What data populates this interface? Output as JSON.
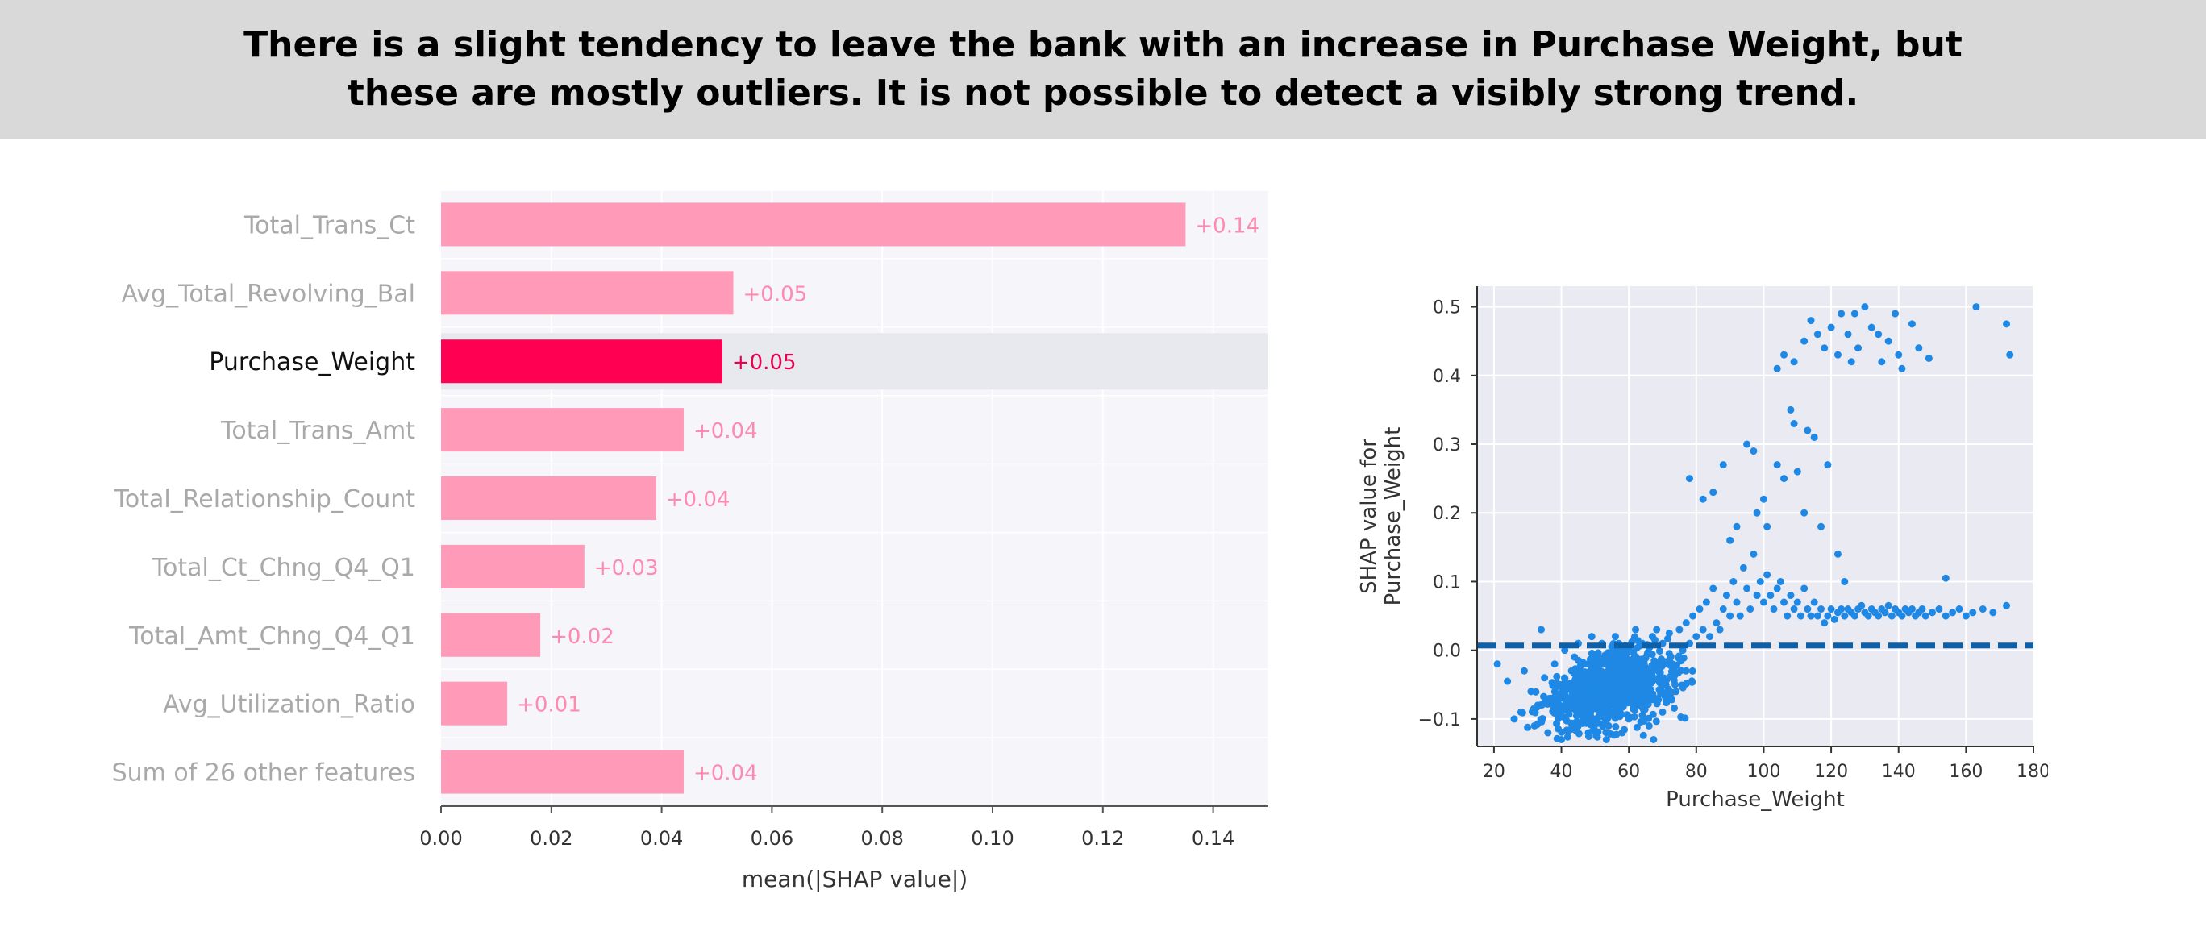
{
  "header": {
    "text": "There is a slight tendency to leave the bank with an increase in Purchase Weight, but these are mostly outliers. It is not possible to detect a visibly strong trend."
  },
  "colors": {
    "header_bg": "#d9d9d9",
    "bar": "#ff9ab9",
    "bar_highlight": "#ff0052",
    "bar_label": "#ff8ab0",
    "bar_label_highlight": "#e8004a",
    "bar_plot_bg": "#f5f5fa",
    "bar_highlight_band": "#e8e8ef",
    "scatter_bg": "#eaeaf2",
    "scatter_point": "#1f88e5",
    "dashed_line": "#0d5fa8"
  },
  "chart_data": [
    {
      "type": "bar",
      "orientation": "horizontal",
      "categories": [
        "Total_Trans_Ct",
        "Avg_Total_Revolving_Bal",
        "Purchase_Weight",
        "Total_Trans_Amt",
        "Total_Relationship_Count",
        "Total_Ct_Chng_Q4_Q1",
        "Total_Amt_Chng_Q4_Q1",
        "Avg_Utilization_Ratio",
        "Sum of 26 other features"
      ],
      "values": [
        0.135,
        0.053,
        0.051,
        0.044,
        0.039,
        0.026,
        0.018,
        0.012,
        0.044
      ],
      "value_labels": [
        "+0.14",
        "+0.05",
        "+0.05",
        "+0.04",
        "+0.04",
        "+0.03",
        "+0.02",
        "+0.01",
        "+0.04"
      ],
      "highlighted": "Purchase_Weight",
      "xlabel": "mean(|SHAP value|)",
      "xlim": [
        0,
        0.15
      ],
      "xticks": [
        0.0,
        0.02,
        0.04,
        0.06,
        0.08,
        0.1,
        0.12,
        0.14
      ],
      "xtick_labels": [
        "0.00",
        "0.02",
        "0.04",
        "0.06",
        "0.08",
        "0.10",
        "0.12",
        "0.14"
      ]
    },
    {
      "type": "scatter",
      "xlabel": "Purchase_Weight",
      "ylabel_lines": [
        "SHAP value for",
        "Purchase_Weight"
      ],
      "xlim": [
        15,
        180
      ],
      "ylim": [
        -0.14,
        0.53
      ],
      "xticks": [
        20,
        40,
        60,
        80,
        100,
        120,
        140,
        160,
        180
      ],
      "xtick_labels": [
        "20",
        "40",
        "60",
        "80",
        "100",
        "120",
        "140",
        "160",
        "180"
      ],
      "yticks": [
        -0.1,
        0.0,
        0.1,
        0.2,
        0.3,
        0.4,
        0.5
      ],
      "ytick_labels": [
        "−0.1",
        "0.0",
        "0.1",
        "0.2",
        "0.3",
        "0.4",
        "0.5"
      ],
      "grid": true,
      "reference_line": {
        "y": 0.007,
        "style": "dashed"
      },
      "points": [
        [
          21,
          -0.02
        ],
        [
          24,
          -0.045
        ],
        [
          26,
          -0.1
        ],
        [
          28,
          -0.09
        ],
        [
          29,
          -0.03
        ],
        [
          31,
          -0.06
        ],
        [
          32,
          -0.11
        ],
        [
          33,
          -0.08
        ],
        [
          34,
          0.03
        ],
        [
          35,
          -0.04
        ],
        [
          36,
          -0.12
        ],
        [
          37,
          -0.07
        ],
        [
          38,
          -0.02
        ],
        [
          39,
          -0.1
        ],
        [
          40,
          -0.13
        ],
        [
          40,
          -0.05
        ],
        [
          41,
          0.0
        ],
        [
          42,
          -0.085
        ],
        [
          43,
          -0.03
        ],
        [
          44,
          -0.115
        ],
        [
          44,
          -0.06
        ],
        [
          45,
          0.01
        ],
        [
          46,
          -0.04
        ],
        [
          46,
          -0.095
        ],
        [
          47,
          -0.02
        ],
        [
          48,
          -0.07
        ],
        [
          48,
          -0.12
        ],
        [
          49,
          0.02
        ],
        [
          50,
          -0.05
        ],
        [
          50,
          -0.1
        ],
        [
          51,
          -0.03
        ],
        [
          52,
          -0.08
        ],
        [
          52,
          0.01
        ],
        [
          53,
          -0.06
        ],
        [
          54,
          -0.11
        ],
        [
          54,
          -0.02
        ],
        [
          55,
          -0.04
        ],
        [
          56,
          -0.09
        ],
        [
          56,
          0.02
        ],
        [
          57,
          -0.07
        ],
        [
          58,
          -0.03
        ],
        [
          58,
          -0.12
        ],
        [
          59,
          0.0
        ],
        [
          60,
          -0.05
        ],
        [
          60,
          -0.1
        ],
        [
          61,
          -0.02
        ],
        [
          62,
          -0.08
        ],
        [
          62,
          0.03
        ],
        [
          63,
          -0.04
        ],
        [
          64,
          -0.095
        ],
        [
          64,
          0.01
        ],
        [
          65,
          -0.06
        ],
        [
          66,
          -0.11
        ],
        [
          66,
          -0.03
        ],
        [
          67,
          0.02
        ],
        [
          68,
          -0.07
        ],
        [
          68,
          -0.02
        ],
        [
          69,
          -0.04
        ],
        [
          70,
          0.01
        ],
        [
          70,
          -0.09
        ],
        [
          71,
          -0.05
        ],
        [
          72,
          0.025
        ],
        [
          73,
          -0.02
        ],
        [
          74,
          -0.06
        ],
        [
          75,
          0.03
        ],
        [
          76,
          0.0
        ],
        [
          77,
          0.04
        ],
        [
          78,
          0.01
        ],
        [
          79,
          0.05
        ],
        [
          80,
          0.02
        ],
        [
          81,
          0.06
        ],
        [
          82,
          0.03
        ],
        [
          83,
          0.07
        ],
        [
          84,
          0.02
        ],
        [
          85,
          0.09
        ],
        [
          86,
          0.04
        ],
        [
          87,
          0.03
        ],
        [
          88,
          0.06
        ],
        [
          89,
          0.08
        ],
        [
          90,
          0.05
        ],
        [
          91,
          0.1
        ],
        [
          92,
          0.07
        ],
        [
          93,
          0.05
        ],
        [
          94,
          0.12
        ],
        [
          95,
          0.09
        ],
        [
          96,
          0.06
        ],
        [
          97,
          0.14
        ],
        [
          98,
          0.08
        ],
        [
          99,
          0.1
        ],
        [
          100,
          0.07
        ],
        [
          101,
          0.11
        ],
        [
          102,
          0.08
        ],
        [
          103,
          0.06
        ],
        [
          104,
          0.09
        ],
        [
          105,
          0.1
        ],
        [
          106,
          0.07
        ],
        [
          107,
          0.05
        ],
        [
          108,
          0.08
        ],
        [
          109,
          0.06
        ],
        [
          110,
          0.07
        ],
        [
          111,
          0.05
        ],
        [
          112,
          0.09
        ],
        [
          113,
          0.06
        ],
        [
          114,
          0.05
        ],
        [
          115,
          0.07
        ],
        [
          116,
          0.05
        ],
        [
          117,
          0.06
        ],
        [
          118,
          0.04
        ],
        [
          119,
          0.05
        ],
        [
          120,
          0.06
        ],
        [
          121,
          0.045
        ],
        [
          122,
          0.055
        ],
        [
          123,
          0.06
        ],
        [
          124,
          0.05
        ],
        [
          125,
          0.06
        ],
        [
          126,
          0.055
        ],
        [
          127,
          0.05
        ],
        [
          128,
          0.06
        ],
        [
          129,
          0.065
        ],
        [
          130,
          0.055
        ],
        [
          131,
          0.05
        ],
        [
          132,
          0.06
        ],
        [
          133,
          0.055
        ],
        [
          134,
          0.05
        ],
        [
          135,
          0.06
        ],
        [
          136,
          0.055
        ],
        [
          137,
          0.065
        ],
        [
          138,
          0.05
        ],
        [
          139,
          0.06
        ],
        [
          140,
          0.055
        ],
        [
          141,
          0.05
        ],
        [
          142,
          0.06
        ],
        [
          143,
          0.055
        ],
        [
          144,
          0.06
        ],
        [
          145,
          0.05
        ],
        [
          146,
          0.055
        ],
        [
          147,
          0.06
        ],
        [
          148,
          0.05
        ],
        [
          150,
          0.055
        ],
        [
          152,
          0.06
        ],
        [
          154,
          0.05
        ],
        [
          156,
          0.055
        ],
        [
          158,
          0.06
        ],
        [
          160,
          0.05
        ],
        [
          162,
          0.055
        ],
        [
          165,
          0.06
        ],
        [
          168,
          0.055
        ],
        [
          172,
          0.065
        ],
        [
          78,
          0.25
        ],
        [
          82,
          0.22
        ],
        [
          85,
          0.23
        ],
        [
          88,
          0.27
        ],
        [
          90,
          0.16
        ],
        [
          92,
          0.18
        ],
        [
          95,
          0.3
        ],
        [
          97,
          0.29
        ],
        [
          98,
          0.2
        ],
        [
          100,
          0.22
        ],
        [
          101,
          0.18
        ],
        [
          104,
          0.27
        ],
        [
          106,
          0.25
        ],
        [
          108,
          0.35
        ],
        [
          109,
          0.33
        ],
        [
          110,
          0.26
        ],
        [
          112,
          0.2
        ],
        [
          113,
          0.32
        ],
        [
          115,
          0.31
        ],
        [
          117,
          0.18
        ],
        [
          119,
          0.27
        ],
        [
          122,
          0.14
        ],
        [
          124,
          0.1
        ],
        [
          154,
          0.105
        ],
        [
          104,
          0.41
        ],
        [
          106,
          0.43
        ],
        [
          109,
          0.42
        ],
        [
          112,
          0.45
        ],
        [
          114,
          0.48
        ],
        [
          116,
          0.46
        ],
        [
          118,
          0.44
        ],
        [
          120,
          0.47
        ],
        [
          122,
          0.43
        ],
        [
          123,
          0.49
        ],
        [
          125,
          0.46
        ],
        [
          126,
          0.42
        ],
        [
          127,
          0.49
        ],
        [
          128,
          0.44
        ],
        [
          130,
          0.5
        ],
        [
          132,
          0.47
        ],
        [
          134,
          0.46
        ],
        [
          135,
          0.42
        ],
        [
          137,
          0.45
        ],
        [
          139,
          0.49
        ],
        [
          140,
          0.43
        ],
        [
          141,
          0.41
        ],
        [
          144,
          0.475
        ],
        [
          146,
          0.44
        ],
        [
          149,
          0.425
        ],
        [
          163,
          0.5
        ],
        [
          172,
          0.475
        ],
        [
          173,
          0.43
        ]
      ]
    }
  ]
}
